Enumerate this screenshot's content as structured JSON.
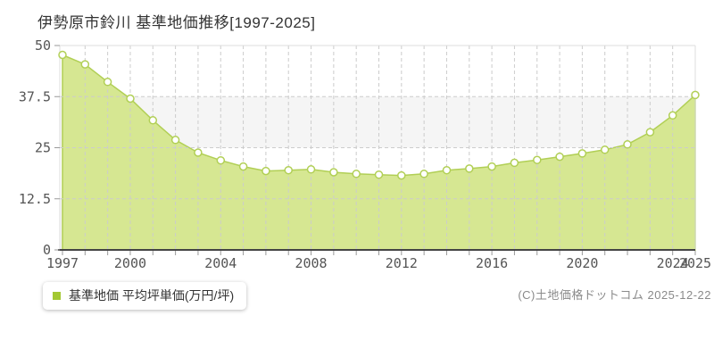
{
  "page": {
    "title": "伊勢原市鈴川 基準地価推移[1997-2025]"
  },
  "legend": {
    "label": "基準地価 平均坪単価(万円/坪)",
    "marker_color": "#a3c832"
  },
  "footer": {
    "copyright": "(C)土地価格ドットコム 2025-12-22"
  },
  "chart_data": {
    "type": "area",
    "title": "伊勢原市鈴川 基準地価推移[1997-2025]",
    "series_name": "基準地価",
    "ylabel": "平均坪単価(万円/坪)",
    "x": [
      1997,
      1998,
      1999,
      2000,
      2001,
      2002,
      2003,
      2004,
      2005,
      2006,
      2007,
      2008,
      2009,
      2010,
      2011,
      2012,
      2013,
      2014,
      2015,
      2016,
      2017,
      2018,
      2019,
      2020,
      2021,
      2022,
      2023,
      2024,
      2025
    ],
    "values": [
      47.7,
      45.4,
      41.1,
      37.0,
      31.7,
      26.9,
      23.8,
      21.9,
      20.4,
      19.3,
      19.5,
      19.7,
      19.0,
      18.6,
      18.4,
      18.2,
      18.6,
      19.5,
      19.9,
      20.4,
      21.3,
      22.0,
      22.8,
      23.6,
      24.5,
      25.8,
      28.8,
      32.9,
      37.9
    ],
    "ylim": [
      0,
      50
    ],
    "yticks": [
      0,
      12.5,
      25,
      37.5,
      50
    ],
    "ytick_labels": [
      "0",
      "12.5",
      "25",
      "37.5",
      "50"
    ],
    "labeled_years": [
      1997,
      2000,
      2004,
      2008,
      2012,
      2016,
      2020,
      2024,
      2025
    ],
    "grid": true,
    "legend_position": "bottom-left",
    "colors": {
      "area_fill": "#d6e792",
      "line": "#b1cf55",
      "marker_fill": "#ffffff",
      "grid": "#cccccc",
      "band": "#f5f5f5",
      "plot_border": "#dddddd",
      "axis": "#444444",
      "tick": "#999999",
      "tick_text": "#555555"
    }
  }
}
